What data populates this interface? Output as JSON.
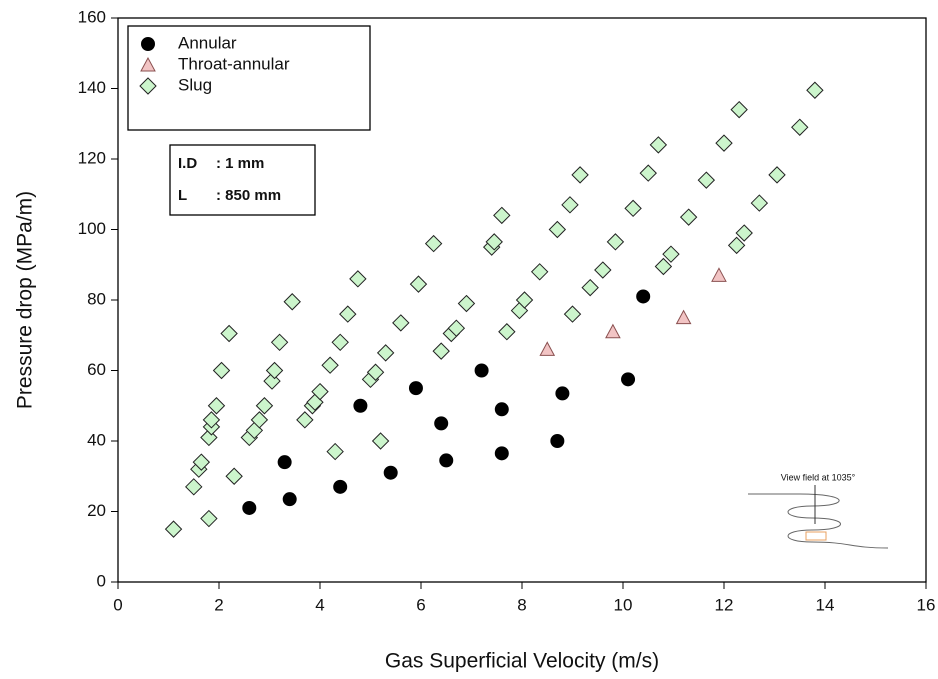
{
  "chart_data": {
    "type": "scatter",
    "x_label": "Gas Superficial Velocity (m/s)",
    "y_label": "Pressure drop (MPa/m)",
    "xlim": [
      0,
      16
    ],
    "ylim": [
      0,
      160
    ],
    "xticks": [
      0,
      2,
      4,
      6,
      8,
      10,
      12,
      14,
      16
    ],
    "yticks": [
      0,
      20,
      40,
      60,
      80,
      100,
      120,
      140,
      160
    ],
    "grid": false,
    "legend_position": "upper-left",
    "annotations": [
      "I.D",
      ": 1 mm",
      "L",
      ": 850 mm",
      "View field at 1035°"
    ],
    "series": [
      {
        "name": "Annular",
        "color": "#000000",
        "marker": "circle",
        "x": [
          2.6,
          3.4,
          3.3,
          4.4,
          4.8,
          5.4,
          5.9,
          6.4,
          6.5,
          7.2,
          7.6,
          7.6,
          8.8,
          8.7,
          10.1,
          10.4
        ],
        "values": [
          21,
          23.5,
          34,
          27,
          50,
          31,
          55,
          45,
          34.5,
          60,
          49,
          36.5,
          53.5,
          40,
          57.5,
          81
        ]
      },
      {
        "name": "Throat-annular",
        "color": "#f2c4c4",
        "marker": "triangle",
        "x": [
          8.5,
          9.8,
          11.2,
          11.9
        ],
        "values": [
          66,
          71,
          75,
          87
        ]
      },
      {
        "name": "Slug",
        "color": "#ccf5cc",
        "marker": "diamond",
        "x": [
          1.1,
          1.5,
          1.6,
          1.65,
          1.8,
          1.85,
          1.85,
          1.95,
          2.05,
          2.2,
          1.8,
          2.3,
          2.6,
          2.7,
          2.8,
          2.9,
          3.05,
          3.1,
          3.2,
          3.45,
          3.7,
          3.85,
          3.9,
          4.0,
          4.2,
          4.3,
          4.4,
          4.55,
          4.75,
          5.0,
          5.1,
          5.2,
          5.3,
          5.6,
          5.95,
          6.25,
          6.4,
          6.6,
          6.7,
          6.9,
          7.4,
          7.45,
          7.6,
          7.7,
          7.95,
          8.05,
          8.35,
          8.7,
          8.95,
          9.15,
          9.0,
          9.35,
          9.6,
          9.85,
          10.2,
          10.5,
          10.7,
          10.8,
          10.95,
          11.3,
          11.65,
          12.0,
          12.3,
          12.25,
          12.4,
          12.7,
          13.05,
          13.5,
          13.8
        ],
        "values": [
          15,
          27,
          32,
          34,
          41,
          44,
          46,
          50,
          60,
          70.5,
          18,
          30,
          41,
          43,
          46,
          50,
          57,
          60,
          68,
          79.5,
          46,
          50,
          51,
          54,
          61.5,
          37,
          68,
          76,
          86,
          57.5,
          59.5,
          40,
          65,
          73.5,
          84.5,
          96,
          65.5,
          70.5,
          72,
          79,
          95,
          96.5,
          104,
          71,
          77,
          80,
          88,
          100,
          107,
          115.5,
          76,
          83.5,
          88.5,
          96.5,
          106,
          116,
          124,
          89.5,
          93,
          103.5,
          114,
          124.5,
          134,
          95.5,
          99,
          107.5,
          115.5,
          129,
          139.5
        ]
      }
    ]
  }
}
